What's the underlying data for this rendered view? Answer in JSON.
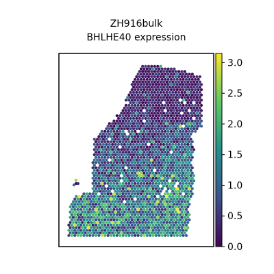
{
  "chart_data": {
    "type": "scatter",
    "title": "ZH916bulk",
    "subtitle": "BHLHE40 expression",
    "xlabel": "",
    "ylabel": "",
    "grid": false,
    "colorbar": {
      "cmap": "viridis",
      "range": [
        0.0,
        3.15
      ],
      "ticks": [
        0.0,
        0.5,
        1.0,
        1.5,
        2.0,
        2.5,
        3.0
      ],
      "tick_labels": [
        "0.0",
        "0.5",
        "1.0",
        "1.5",
        "2.0",
        "2.5",
        "3.0"
      ],
      "colors": [
        "#440154",
        "#3b528b",
        "#21918c",
        "#5ec962",
        "#fde725"
      ]
    },
    "summary": {
      "upper_region_typical_value": 0.3,
      "lower_region_typical_value": 1.3,
      "max_value": 3.1
    }
  }
}
